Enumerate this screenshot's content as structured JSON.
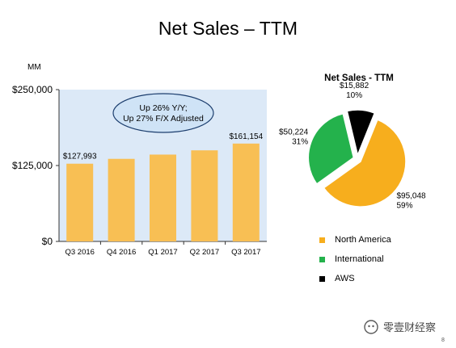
{
  "slide": {
    "title": "Net Sales – TTM",
    "unit": "MM",
    "page_number": "8",
    "watermark": "零壹财经察"
  },
  "colors": {
    "bar": "#F8BF54",
    "plot_bg": "#DCE9F7",
    "north_america": "#F7AE1D",
    "international": "#24B24C",
    "aws": "#000000",
    "callout_fill": "#CFE3F6",
    "callout_border": "#1C3E6E"
  },
  "chart_data": [
    {
      "type": "bar",
      "categories": [
        "Q3 2016",
        "Q4 2016",
        "Q1 2017",
        "Q2 2017",
        "Q3 2017"
      ],
      "values": [
        127993,
        136000,
        143000,
        150000,
        161154
      ],
      "data_labels": {
        "0": "$127,993",
        "4": "$161,154"
      },
      "ylim": [
        0,
        250000
      ],
      "yticks": [
        {
          "value": 0,
          "label": "$0"
        },
        {
          "value": 125000,
          "label": "$125,000"
        },
        {
          "value": 250000,
          "label": "$250,000"
        }
      ],
      "annotation": [
        "Up 26% Y/Y;",
        "Up 27% F/X Adjusted"
      ],
      "grid": false
    },
    {
      "type": "pie",
      "title": "Net Sales - TTM",
      "slices": [
        {
          "name": "North America",
          "value": 95048,
          "value_label": "$95,048",
          "percent_label": "59%",
          "color": "#F7AE1D"
        },
        {
          "name": "International",
          "value": 50224,
          "value_label": "$50,224",
          "percent_label": "31%",
          "color": "#24B24C"
        },
        {
          "name": "AWS",
          "value": 15882,
          "value_label": "$15,882",
          "percent_label": "10%",
          "color": "#000000"
        }
      ],
      "legend": [
        "North America",
        "International",
        "AWS"
      ],
      "legend_position": "bottom"
    }
  ]
}
